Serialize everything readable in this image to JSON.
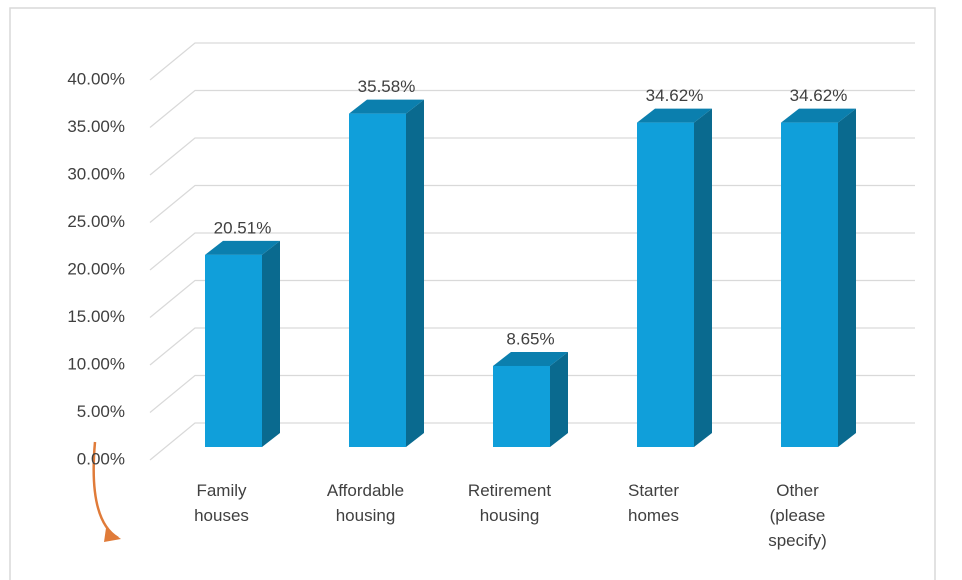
{
  "chart_data": {
    "type": "bar3d",
    "categories": [
      "Family houses",
      "Affordable housing",
      "Retirement housing",
      "Starter homes",
      "Other (please specify)"
    ],
    "values": [
      20.51,
      35.58,
      8.65,
      34.62,
      34.62
    ],
    "value_labels": [
      "20.51%",
      "35.58%",
      "8.65%",
      "34.62%",
      "34.62%"
    ],
    "color": "#109fda",
    "ylim": [
      0,
      40
    ],
    "yticks": [
      {
        "value": 0,
        "label": "0.00%"
      },
      {
        "value": 5,
        "label": "5.00%"
      },
      {
        "value": 10,
        "label": "10.00%"
      },
      {
        "value": 15,
        "label": "15.00%"
      },
      {
        "value": 20,
        "label": "20.00%"
      },
      {
        "value": 25,
        "label": "25.00%"
      },
      {
        "value": 30,
        "label": "30.00%"
      },
      {
        "value": 35,
        "label": "35.00%"
      },
      {
        "value": 40,
        "label": "40.00%"
      }
    ],
    "grid": true
  }
}
